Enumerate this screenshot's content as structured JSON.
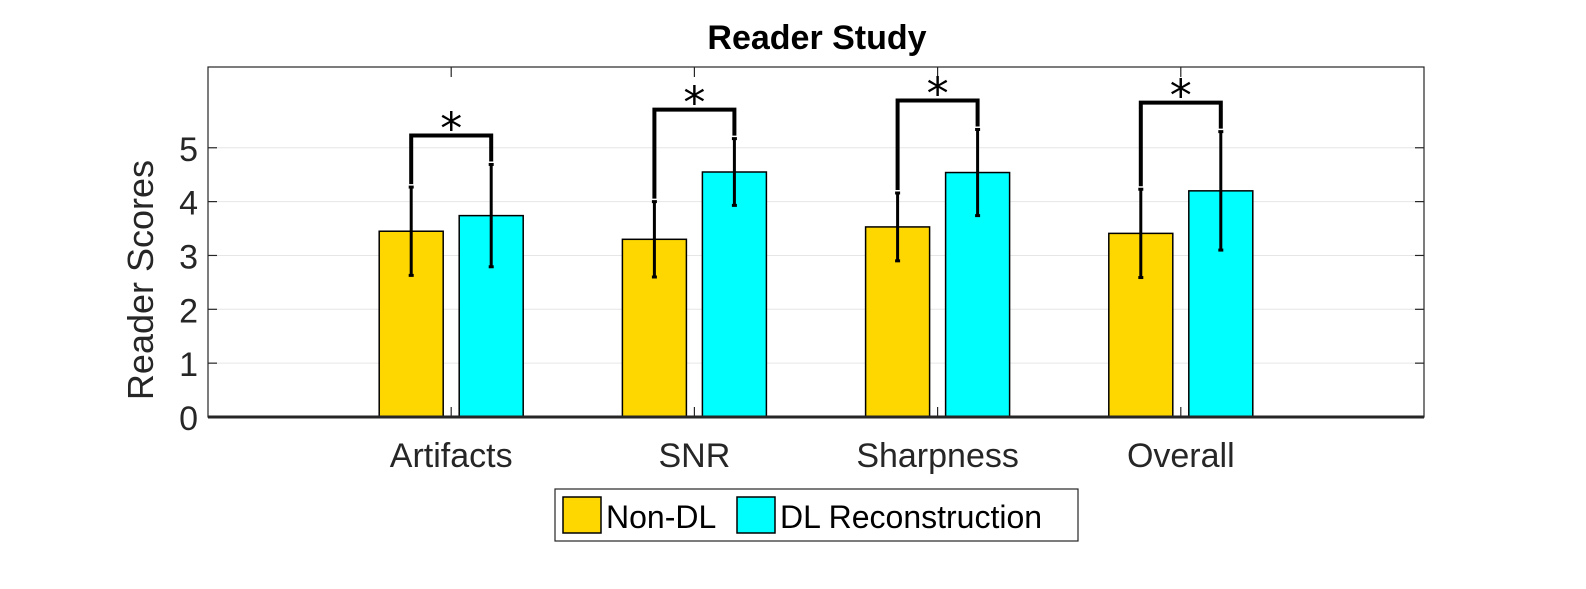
{
  "chart_data": {
    "type": "bar",
    "title": "Reader Study",
    "xlabel": "",
    "ylabel": "Reader Scores",
    "categories": [
      "Artifacts",
      "SNR",
      "Sharpness",
      "Overall"
    ],
    "series": [
      {
        "name": "Non-DL",
        "color": "#FFD700",
        "values": [
          3.45,
          3.3,
          3.53,
          3.41
        ],
        "error": [
          0.82,
          0.7,
          0.63,
          0.82
        ]
      },
      {
        "name": "DL Reconstruction",
        "color": "#00FFFF",
        "values": [
          3.74,
          4.55,
          4.54,
          4.2
        ],
        "error": [
          0.95,
          0.62,
          0.8,
          1.1
        ]
      }
    ],
    "significance": [
      {
        "category": "Artifacts",
        "marker": "*"
      },
      {
        "category": "SNR",
        "marker": "*"
      },
      {
        "category": "Sharpness",
        "marker": "*"
      },
      {
        "category": "Overall",
        "marker": "*"
      }
    ],
    "ylim": [
      0,
      6.5
    ],
    "yticks": [
      0,
      1,
      2,
      3,
      4,
      5
    ],
    "grid": true,
    "legend_position": "bottom-center"
  }
}
